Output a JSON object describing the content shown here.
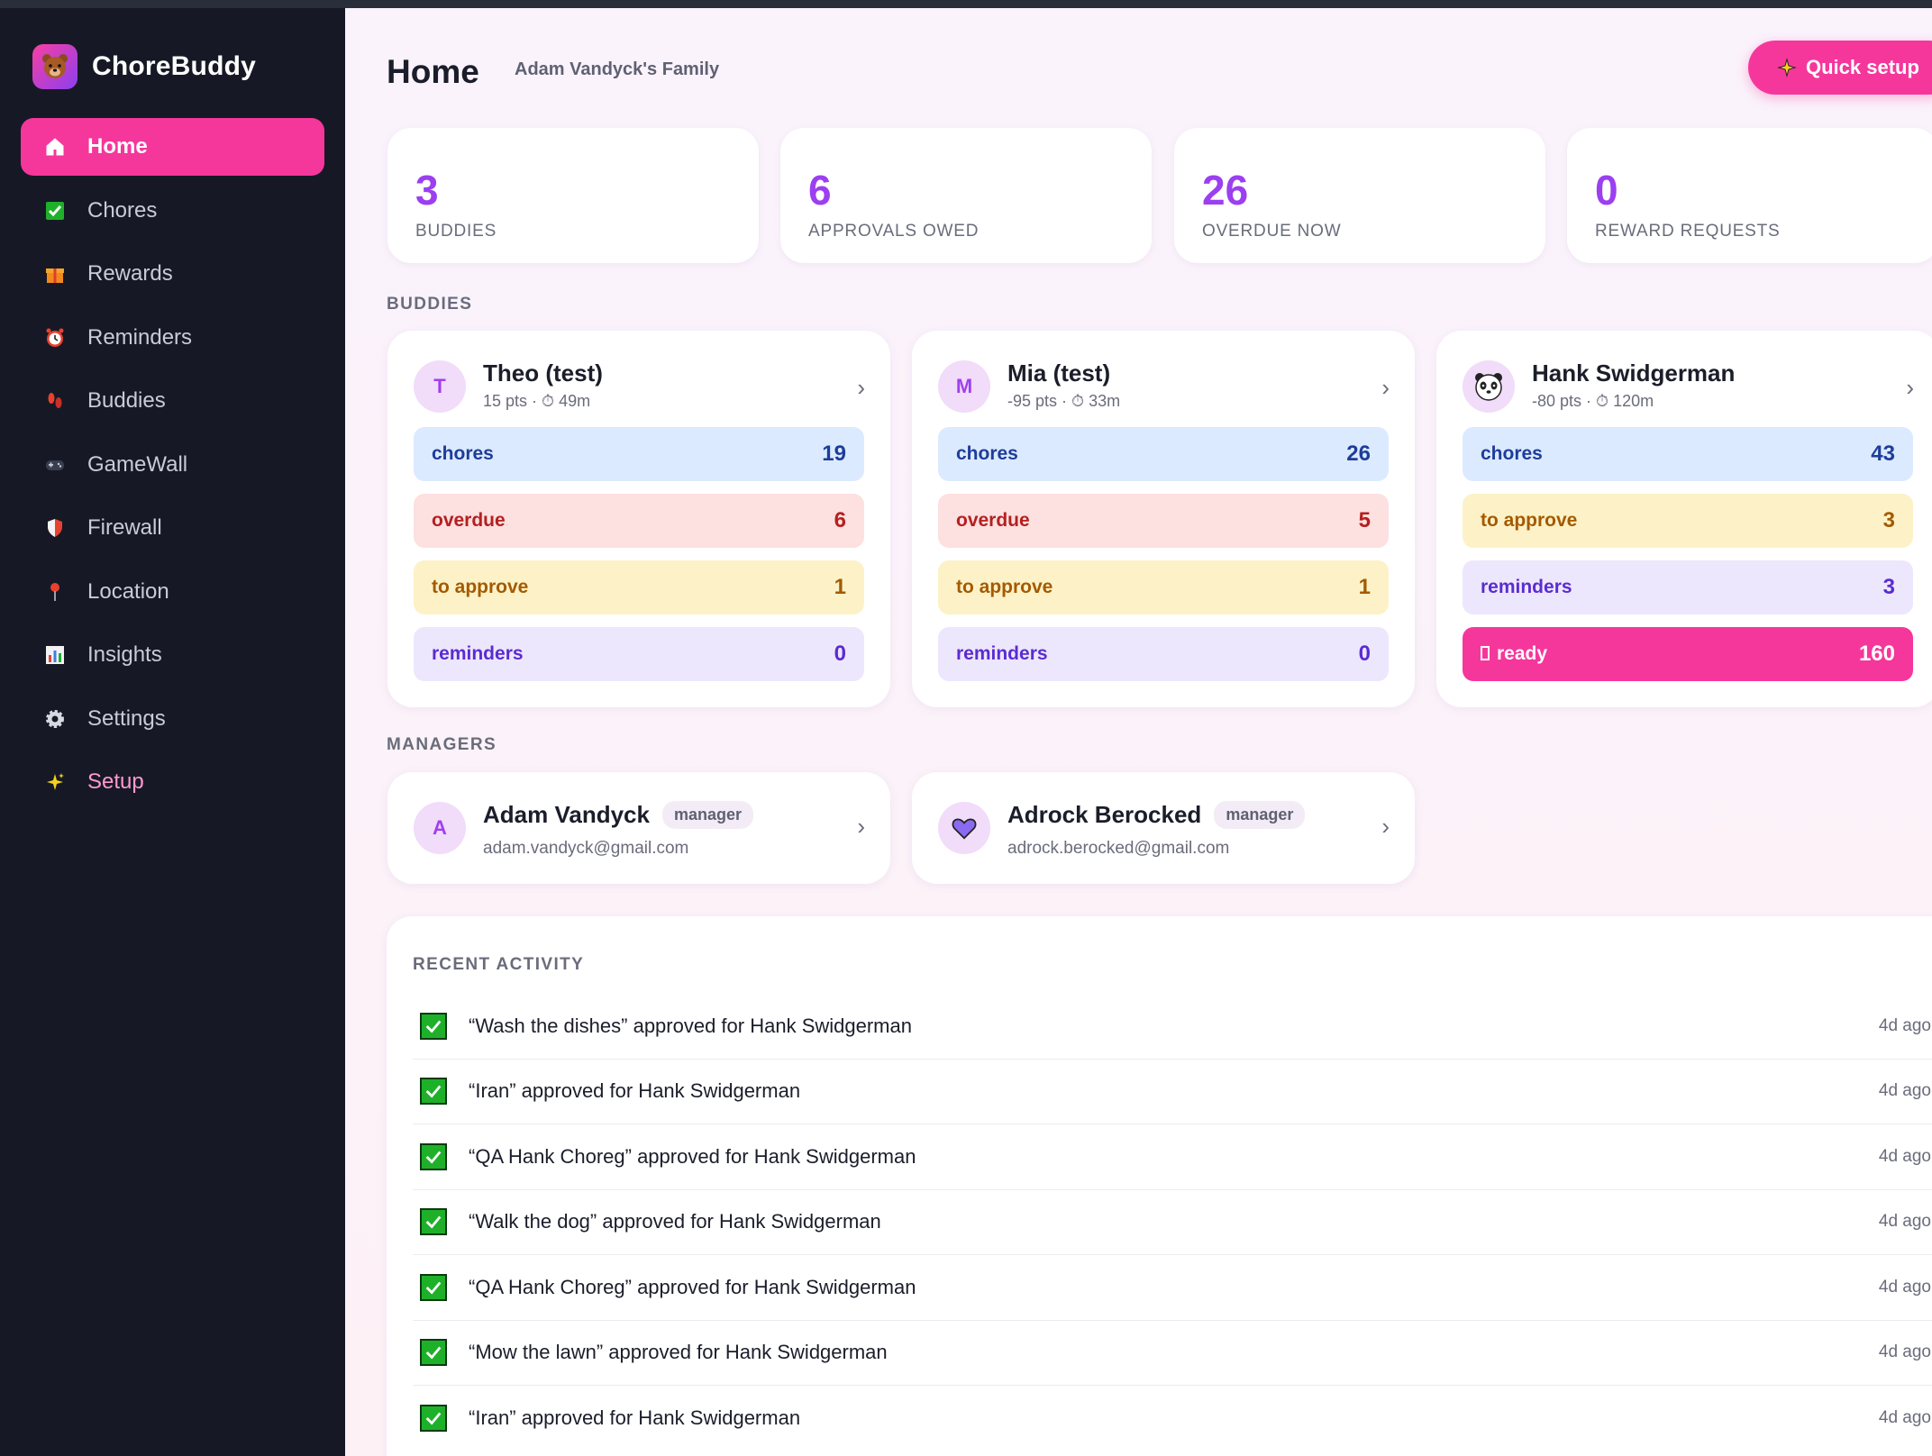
{
  "brand": {
    "name": "ChoreBuddy",
    "logo_icon": "bear-icon"
  },
  "nav": [
    {
      "label": "Home",
      "icon": "house-icon",
      "active": true
    },
    {
      "label": "Chores",
      "icon": "check-icon"
    },
    {
      "label": "Rewards",
      "icon": "gift-icon"
    },
    {
      "label": "Reminders",
      "icon": "alarm-clock-icon"
    },
    {
      "label": "Buddies",
      "icon": "footprints-icon"
    },
    {
      "label": "GameWall",
      "icon": "gamepad-icon"
    },
    {
      "label": "Firewall",
      "icon": "shield-icon"
    },
    {
      "label": "Location",
      "icon": "pin-icon"
    },
    {
      "label": "Insights",
      "icon": "bar-chart-icon"
    },
    {
      "label": "Settings",
      "icon": "gear-icon"
    },
    {
      "label": "Setup",
      "icon": "sparkles-icon"
    }
  ],
  "header": {
    "title": "Home",
    "family": "Adam Vandyck's Family",
    "quick_setup_label": "Quick setup"
  },
  "stats": [
    {
      "value": "3",
      "label": "BUDDIES"
    },
    {
      "value": "6",
      "label": "APPROVALS OWED"
    },
    {
      "value": "26",
      "label": "OVERDUE NOW"
    },
    {
      "value": "0",
      "label": "REWARD REQUESTS"
    }
  ],
  "sections": {
    "buddies": "BUDDIES",
    "managers": "MANAGERS",
    "activity": "RECENT ACTIVITY"
  },
  "buddies": [
    {
      "initial": "T",
      "name": "Theo (test)",
      "meta": "15 pts · ⏱ 49m",
      "rows": [
        {
          "label": "chores",
          "value": "19",
          "kind": "chores"
        },
        {
          "label": "overdue",
          "value": "6",
          "kind": "overdue"
        },
        {
          "label": "to approve",
          "value": "1",
          "kind": "approve"
        },
        {
          "label": "reminders",
          "value": "0",
          "kind": "reminders"
        }
      ]
    },
    {
      "initial": "M",
      "name": "Mia (test)",
      "meta": "-95 pts · ⏱ 33m",
      "rows": [
        {
          "label": "chores",
          "value": "26",
          "kind": "chores"
        },
        {
          "label": "overdue",
          "value": "5",
          "kind": "overdue"
        },
        {
          "label": "to approve",
          "value": "1",
          "kind": "approve"
        },
        {
          "label": "reminders",
          "value": "0",
          "kind": "reminders"
        }
      ]
    },
    {
      "initial": "",
      "avatar_icon": "panda-icon",
      "name": "Hank Swidgerman",
      "meta": "-80 pts · ⏱ 120m",
      "rows": [
        {
          "label": "chores",
          "value": "43",
          "kind": "chores"
        },
        {
          "label": "to approve",
          "value": "3",
          "kind": "approve"
        },
        {
          "label": "reminders",
          "value": "3",
          "kind": "reminders"
        },
        {
          "label": "ready",
          "value": "160",
          "kind": "ready"
        }
      ]
    }
  ],
  "managers": [
    {
      "initial": "A",
      "name": "Adam Vandyck",
      "role": "manager",
      "email": "adam.vandyck@gmail.com"
    },
    {
      "initial": "",
      "avatar_icon": "heart-icon",
      "name": "Adrock Berocked",
      "role": "manager",
      "email": "adrock.berocked@gmail.com"
    }
  ],
  "activity": [
    {
      "text": "“Wash the dishes” approved for Hank Swidgerman",
      "time": "4d ago"
    },
    {
      "text": "“Iran” approved for Hank Swidgerman",
      "time": "4d ago"
    },
    {
      "text": "“QA Hank Choreg” approved for Hank Swidgerman",
      "time": "4d ago"
    },
    {
      "text": "“Walk the dog” approved for Hank Swidgerman",
      "time": "4d ago"
    },
    {
      "text": "“QA Hank Choreg” approved for Hank Swidgerman",
      "time": "4d ago"
    },
    {
      "text": "“Mow the lawn” approved for Hank Swidgerman",
      "time": "4d ago"
    },
    {
      "text": "“Iran” approved for Hank Swidgerman",
      "time": "4d ago"
    }
  ],
  "colors": {
    "accent": "#f5379c",
    "stat_value": "#9b3ff0",
    "sidebar_bg": "#161925"
  }
}
